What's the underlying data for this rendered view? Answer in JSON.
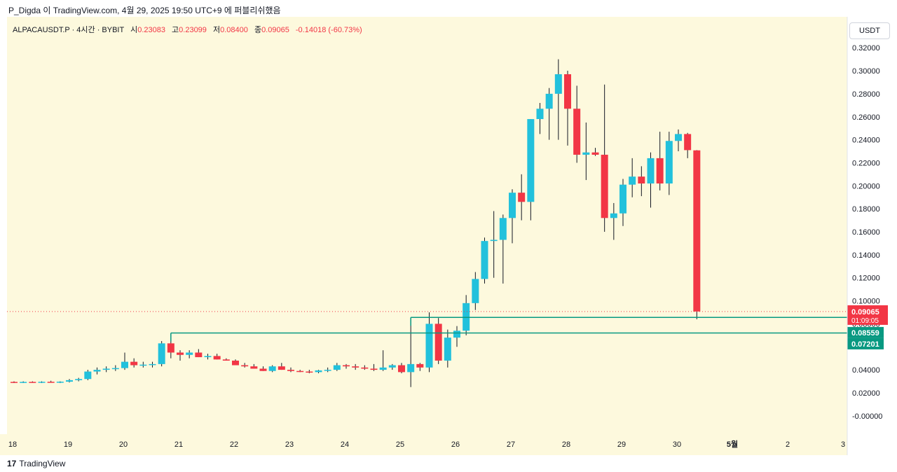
{
  "header": {
    "caption": "P_Digda 이 TradingView.com, 4월 29, 2025 19:50 UTC+9 에 퍼블리쉬했음"
  },
  "symbol": {
    "name": "ALPACAUSDT.P · 4시간 · BYBIT",
    "open_label": "시",
    "open": "0.23083",
    "high_label": "고",
    "high": "0.23099",
    "low_label": "저",
    "low": "0.08400",
    "close_label": "종",
    "close": "0.09065",
    "change": "-0.14018 (-60.73%)"
  },
  "currency": "USDT",
  "footer": {
    "logo_mark": "17",
    "brand": "TradingView"
  },
  "colors": {
    "up": "#22c1dc",
    "down": "#f23645",
    "level_line": "#089981",
    "price_tag": "#f23645",
    "level_tag": "#089981",
    "bg": "#fdf9dd"
  },
  "chart_data": {
    "type": "candlestick",
    "ylim": [
      -0.005,
      0.325
    ],
    "y_ticks": [
      {
        "value": 0.32,
        "label": "0.32000"
      },
      {
        "value": 0.3,
        "label": "0.30000"
      },
      {
        "value": 0.28,
        "label": "0.28000"
      },
      {
        "value": 0.26,
        "label": "0.26000"
      },
      {
        "value": 0.24,
        "label": "0.24000"
      },
      {
        "value": 0.22,
        "label": "0.22000"
      },
      {
        "value": 0.2,
        "label": "0.20000"
      },
      {
        "value": 0.18,
        "label": "0.18000"
      },
      {
        "value": 0.16,
        "label": "0.16000"
      },
      {
        "value": 0.14,
        "label": "0.14000"
      },
      {
        "value": 0.12,
        "label": "0.12000"
      },
      {
        "value": 0.1,
        "label": "0.10000"
      },
      {
        "value": 0.08,
        "label": "0.08000"
      },
      {
        "value": 0.04,
        "label": "0.04000"
      },
      {
        "value": 0.02,
        "label": "0.02000"
      },
      {
        "value": 0.0,
        "label": "-0.00000"
      }
    ],
    "x_ticks": [
      {
        "day": 18,
        "label": "18"
      },
      {
        "day": 19,
        "label": "19"
      },
      {
        "day": 20,
        "label": "20"
      },
      {
        "day": 21,
        "label": "21"
      },
      {
        "day": 22,
        "label": "22"
      },
      {
        "day": 23,
        "label": "23"
      },
      {
        "day": 24,
        "label": "24"
      },
      {
        "day": 25,
        "label": "25"
      },
      {
        "day": 26,
        "label": "26"
      },
      {
        "day": 27,
        "label": "27"
      },
      {
        "day": 28,
        "label": "28"
      },
      {
        "day": 29,
        "label": "29"
      },
      {
        "day": 30,
        "label": "30"
      },
      {
        "day": 31,
        "label": "5월"
      },
      {
        "day": 32,
        "label": "2"
      },
      {
        "day": 33,
        "label": "3"
      }
    ],
    "candles_per_day": 6,
    "first_candle_day": 18,
    "candles": [
      [
        0.0295,
        0.03,
        0.0285,
        0.0292
      ],
      [
        0.0292,
        0.03,
        0.0285,
        0.0295
      ],
      [
        0.0295,
        0.03,
        0.0288,
        0.0292
      ],
      [
        0.0292,
        0.03,
        0.0285,
        0.0296
      ],
      [
        0.0296,
        0.0305,
        0.029,
        0.0293
      ],
      [
        0.0293,
        0.03,
        0.0285,
        0.0297
      ],
      [
        0.0297,
        0.032,
        0.029,
        0.031
      ],
      [
        0.031,
        0.033,
        0.03,
        0.032
      ],
      [
        0.032,
        0.04,
        0.031,
        0.0385
      ],
      [
        0.0385,
        0.042,
        0.036,
        0.04
      ],
      [
        0.04,
        0.043,
        0.038,
        0.041
      ],
      [
        0.041,
        0.044,
        0.039,
        0.0415
      ],
      [
        0.0415,
        0.055,
        0.04,
        0.047
      ],
      [
        0.047,
        0.05,
        0.042,
        0.044
      ],
      [
        0.044,
        0.047,
        0.042,
        0.0445
      ],
      [
        0.0445,
        0.047,
        0.042,
        0.045
      ],
      [
        0.045,
        0.065,
        0.043,
        0.063
      ],
      [
        0.063,
        0.072,
        0.05,
        0.055
      ],
      [
        0.055,
        0.057,
        0.048,
        0.053
      ],
      [
        0.053,
        0.057,
        0.05,
        0.055
      ],
      [
        0.055,
        0.058,
        0.051,
        0.051
      ],
      [
        0.051,
        0.054,
        0.049,
        0.052
      ],
      [
        0.052,
        0.054,
        0.049,
        0.049
      ],
      [
        0.049,
        0.05,
        0.048,
        0.048
      ],
      [
        0.048,
        0.049,
        0.044,
        0.044
      ],
      [
        0.044,
        0.046,
        0.042,
        0.043
      ],
      [
        0.043,
        0.045,
        0.041,
        0.041
      ],
      [
        0.041,
        0.043,
        0.039,
        0.039
      ],
      [
        0.039,
        0.044,
        0.038,
        0.043
      ],
      [
        0.043,
        0.046,
        0.04,
        0.04
      ],
      [
        0.04,
        0.042,
        0.038,
        0.039
      ],
      [
        0.039,
        0.04,
        0.038,
        0.0385
      ],
      [
        0.0385,
        0.04,
        0.037,
        0.038
      ],
      [
        0.038,
        0.04,
        0.037,
        0.0395
      ],
      [
        0.0395,
        0.042,
        0.038,
        0.04
      ],
      [
        0.04,
        0.046,
        0.039,
        0.044
      ],
      [
        0.044,
        0.045,
        0.041,
        0.043
      ],
      [
        0.043,
        0.045,
        0.04,
        0.042
      ],
      [
        0.042,
        0.044,
        0.04,
        0.041
      ],
      [
        0.041,
        0.045,
        0.039,
        0.04
      ],
      [
        0.04,
        0.057,
        0.039,
        0.042
      ],
      [
        0.042,
        0.045,
        0.04,
        0.044
      ],
      [
        0.044,
        0.046,
        0.037,
        0.038
      ],
      [
        0.038,
        0.085,
        0.025,
        0.045
      ],
      [
        0.045,
        0.046,
        0.039,
        0.042
      ],
      [
        0.042,
        0.09,
        0.038,
        0.08
      ],
      [
        0.08,
        0.085,
        0.045,
        0.048
      ],
      [
        0.048,
        0.075,
        0.042,
        0.068
      ],
      [
        0.068,
        0.078,
        0.06,
        0.074
      ],
      [
        0.074,
        0.105,
        0.07,
        0.098
      ],
      [
        0.098,
        0.125,
        0.092,
        0.119
      ],
      [
        0.119,
        0.155,
        0.115,
        0.152
      ],
      [
        0.152,
        0.178,
        0.12,
        0.153
      ],
      [
        0.153,
        0.175,
        0.115,
        0.172
      ],
      [
        0.172,
        0.197,
        0.15,
        0.194
      ],
      [
        0.194,
        0.21,
        0.17,
        0.186
      ],
      [
        0.186,
        0.258,
        0.17,
        0.258
      ],
      [
        0.258,
        0.272,
        0.245,
        0.267
      ],
      [
        0.267,
        0.285,
        0.24,
        0.28
      ],
      [
        0.28,
        0.31,
        0.24,
        0.297
      ],
      [
        0.297,
        0.3,
        0.235,
        0.267
      ],
      [
        0.267,
        0.287,
        0.22,
        0.227
      ],
      [
        0.227,
        0.255,
        0.205,
        0.229
      ],
      [
        0.229,
        0.233,
        0.226,
        0.227
      ],
      [
        0.227,
        0.288,
        0.16,
        0.172
      ],
      [
        0.172,
        0.185,
        0.153,
        0.176
      ],
      [
        0.176,
        0.206,
        0.165,
        0.201
      ],
      [
        0.201,
        0.224,
        0.19,
        0.208
      ],
      [
        0.208,
        0.217,
        0.191,
        0.202
      ],
      [
        0.202,
        0.229,
        0.181,
        0.224
      ],
      [
        0.224,
        0.247,
        0.196,
        0.202
      ],
      [
        0.202,
        0.247,
        0.192,
        0.239
      ],
      [
        0.239,
        0.249,
        0.23,
        0.245
      ],
      [
        0.245,
        0.246,
        0.224,
        0.231
      ],
      [
        0.2308,
        0.231,
        0.084,
        0.0907
      ]
    ],
    "levels": [
      {
        "value": 0.08559,
        "label": "0.08559",
        "start_candle": 43
      },
      {
        "value": 0.07201,
        "label": "0.07201",
        "start_candle": 17
      }
    ],
    "current_price": {
      "value": 0.09065,
      "label": "0.09065",
      "countdown": "01:09:05"
    }
  }
}
